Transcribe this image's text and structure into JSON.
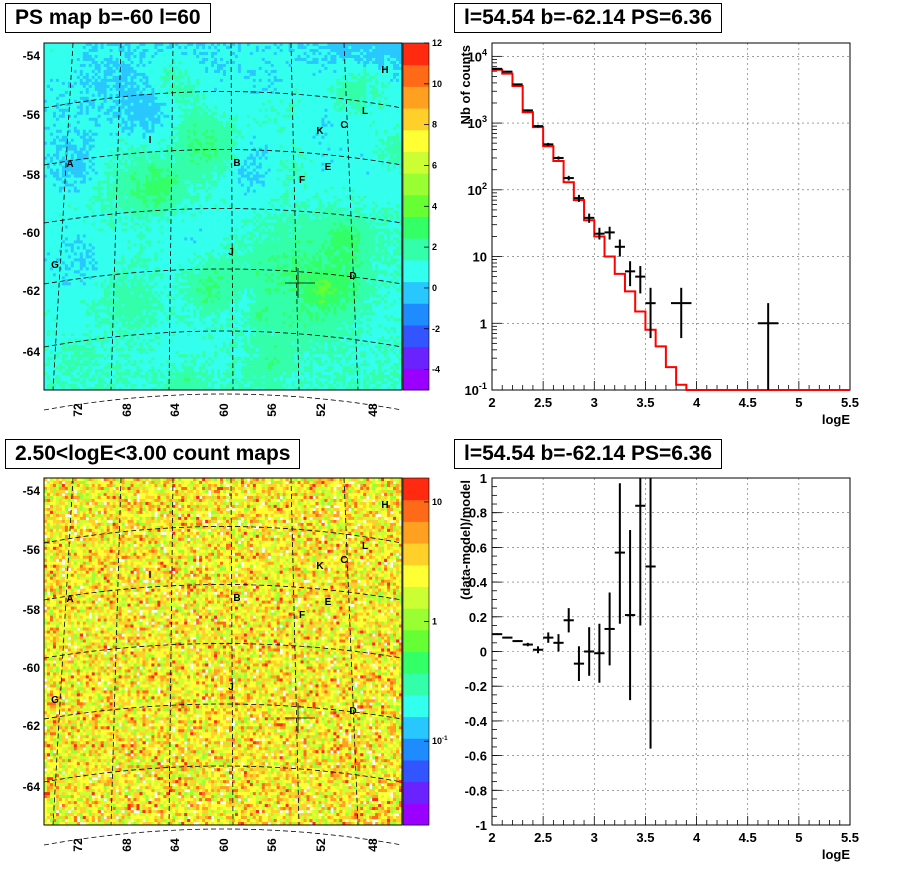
{
  "panels": {
    "map_top_title": "PS map b=-60 l=60",
    "spec_top_title": "l=54.54 b=-62.14 PS=6.36",
    "map_bottom_title": "2.50<logE<3.00 count maps",
    "spec_bottom_title": "l=54.54 b=-62.14 PS=6.36"
  },
  "colors": {
    "frame": "#000000",
    "model_line": "#ff0000",
    "data": "#000000",
    "grid": "#888888"
  },
  "map_common": {
    "y_ticks": [
      "-54",
      "-56",
      "-58",
      "-60",
      "-62",
      "-64"
    ],
    "x_ticks": [
      "72",
      "68",
      "64",
      "60",
      "56",
      "52",
      "48"
    ],
    "sources": [
      "A",
      "B",
      "C",
      "D",
      "E",
      "F",
      "G",
      "H",
      "I",
      "J",
      "K",
      "L"
    ]
  },
  "chart_data": [
    {
      "type": "heatmap",
      "title": "PS map b=-60 l=60",
      "colorbar_ticks": [
        "-4",
        "-2",
        "0",
        "2",
        "4",
        "6",
        "8",
        "10",
        "12"
      ],
      "colorbar_range": [
        -5,
        12
      ],
      "palette": [
        "#9900ff",
        "#6a22ff",
        "#3355ff",
        "#1e8cff",
        "#28c8ff",
        "#33ffee",
        "#33ffaa",
        "#33ff66",
        "#66ff33",
        "#99ff33",
        "#ccff33",
        "#ffff33",
        "#ffd02a",
        "#ffa020",
        "#ff6a18",
        "#ff2a10"
      ],
      "x_range_deg": [
        75,
        45
      ],
      "y_range_deg": [
        -65.3,
        -53.5
      ]
    },
    {
      "type": "line",
      "title": "l=54.54 b=-62.14 PS=6.36",
      "xlabel": "logE",
      "ylabel": "Nb of counts",
      "x_ticks": [
        "2",
        "2.5",
        "3",
        "3.5",
        "4",
        "4.5",
        "5",
        "5.5"
      ],
      "y_ticks": [
        "10^-1",
        "1",
        "10",
        "10^2",
        "10^3",
        "10^4"
      ],
      "xlim": [
        2,
        5.5
      ],
      "ylim_log10": [
        -1,
        4.2
      ],
      "grid": true,
      "series": [
        {
          "style": "step",
          "color": "#ff0000",
          "bin_width": 0.1,
          "bin_starts": [
            2.0,
            2.1,
            2.2,
            2.3,
            2.4,
            2.5,
            2.6,
            2.7,
            2.8,
            2.9,
            3.0,
            3.1,
            3.2,
            3.3,
            3.4,
            3.5,
            3.6,
            3.7,
            3.8,
            3.9,
            4.0,
            4.1,
            4.2,
            4.3,
            4.4,
            4.5,
            4.6,
            4.7,
            4.8,
            4.9,
            5.0,
            5.1,
            5.2,
            5.3,
            5.4
          ],
          "values": [
            6300,
            5500,
            3600,
            1450,
            870,
            450,
            270,
            130,
            70,
            35,
            20,
            10,
            5.5,
            3.0,
            1.5,
            0.8,
            0.45,
            0.22,
            0.12,
            0.1,
            0.1,
            0.1,
            0.1,
            0.1,
            0.1,
            0.1,
            0.1,
            0.1,
            0.1,
            0.1,
            0.1,
            0.1,
            0.1,
            0.1,
            0.1
          ]
        },
        {
          "style": "errorbar",
          "color": "#000000",
          "points": [
            {
              "x": 2.05,
              "y": 6500,
              "lo": 6400,
              "hi": 6600,
              "xw": 0.05
            },
            {
              "x": 2.15,
              "y": 5900,
              "lo": 5800,
              "hi": 6000,
              "xw": 0.05
            },
            {
              "x": 2.25,
              "y": 3800,
              "lo": 3700,
              "hi": 3900,
              "xw": 0.05
            },
            {
              "x": 2.35,
              "y": 1550,
              "lo": 1500,
              "hi": 1600,
              "xw": 0.05
            },
            {
              "x": 2.45,
              "y": 900,
              "lo": 860,
              "hi": 940,
              "xw": 0.05
            },
            {
              "x": 2.55,
              "y": 480,
              "lo": 455,
              "hi": 505,
              "xw": 0.05
            },
            {
              "x": 2.65,
              "y": 300,
              "lo": 283,
              "hi": 317,
              "xw": 0.05
            },
            {
              "x": 2.75,
              "y": 150,
              "lo": 138,
              "hi": 162,
              "xw": 0.05
            },
            {
              "x": 2.85,
              "y": 75,
              "lo": 66,
              "hi": 84,
              "xw": 0.05
            },
            {
              "x": 2.95,
              "y": 38,
              "lo": 32,
              "hi": 44,
              "xw": 0.05
            },
            {
              "x": 3.05,
              "y": 22,
              "lo": 18,
              "hi": 27,
              "xw": 0.05
            },
            {
              "x": 3.15,
              "y": 23,
              "lo": 18,
              "hi": 28,
              "xw": 0.05
            },
            {
              "x": 3.25,
              "y": 14,
              "lo": 10,
              "hi": 18,
              "xw": 0.05
            },
            {
              "x": 3.35,
              "y": 6,
              "lo": 3.6,
              "hi": 8.5,
              "xw": 0.05
            },
            {
              "x": 3.45,
              "y": 5,
              "lo": 2.8,
              "hi": 7.2,
              "xw": 0.05
            },
            {
              "x": 3.55,
              "y": 2,
              "lo": 0.6,
              "hi": 3.4,
              "xw": 0.05
            },
            {
              "x": 3.85,
              "y": 2,
              "lo": 0.6,
              "hi": 3.4,
              "xw": 0.1
            },
            {
              "x": 4.7,
              "y": 1,
              "lo": 0.1,
              "hi": 2,
              "xw": 0.1
            }
          ]
        }
      ]
    },
    {
      "type": "heatmap",
      "title": "2.50<logE<3.00 count maps",
      "colorbar_ticks": [
        "1",
        "10",
        "10^-1"
      ],
      "colorbar_range_log10": [
        -1.7,
        1.2
      ],
      "palette": [
        "#9900ff",
        "#6a22ff",
        "#3355ff",
        "#1e8cff",
        "#28c8ff",
        "#33ffee",
        "#33ffaa",
        "#33ff66",
        "#66ff33",
        "#99ff33",
        "#ccff33",
        "#ffff33",
        "#ffd02a",
        "#ffa020",
        "#ff6a18",
        "#ff2a10"
      ],
      "x_range_deg": [
        75,
        45
      ],
      "y_range_deg": [
        -65.3,
        -53.5
      ]
    },
    {
      "type": "scatter",
      "title": "l=54.54 b=-62.14 PS=6.36",
      "xlabel": "logE",
      "ylabel": "(data-model)/model",
      "x_ticks": [
        "2",
        "2.5",
        "3",
        "3.5",
        "4",
        "4.5",
        "5",
        "5.5"
      ],
      "y_ticks": [
        "-1",
        "-0.8",
        "-0.6",
        "-0.4",
        "-0.2",
        "0",
        "0.2",
        "0.4",
        "0.6",
        "0.8",
        "1"
      ],
      "xlim": [
        2,
        5.5
      ],
      "ylim": [
        -1,
        1
      ],
      "grid": true,
      "points": [
        {
          "x": 2.05,
          "y": 0.1,
          "lo": 0.095,
          "hi": 0.105
        },
        {
          "x": 2.15,
          "y": 0.08,
          "lo": 0.075,
          "hi": 0.085
        },
        {
          "x": 2.25,
          "y": 0.06,
          "lo": 0.055,
          "hi": 0.065
        },
        {
          "x": 2.35,
          "y": 0.04,
          "lo": 0.03,
          "hi": 0.05
        },
        {
          "x": 2.45,
          "y": 0.01,
          "lo": -0.01,
          "hi": 0.03
        },
        {
          "x": 2.55,
          "y": 0.08,
          "lo": 0.05,
          "hi": 0.11
        },
        {
          "x": 2.65,
          "y": 0.05,
          "lo": 0.0,
          "hi": 0.1
        },
        {
          "x": 2.75,
          "y": 0.18,
          "lo": 0.11,
          "hi": 0.25
        },
        {
          "x": 2.85,
          "y": -0.07,
          "lo": -0.17,
          "hi": 0.03
        },
        {
          "x": 2.95,
          "y": 0.0,
          "lo": -0.14,
          "hi": 0.14
        },
        {
          "x": 3.05,
          "y": -0.01,
          "lo": -0.18,
          "hi": 0.16
        },
        {
          "x": 3.15,
          "y": 0.13,
          "lo": -0.08,
          "hi": 0.34
        },
        {
          "x": 3.25,
          "y": 0.57,
          "lo": 0.16,
          "hi": 0.97
        },
        {
          "x": 3.35,
          "y": 0.21,
          "lo": -0.28,
          "hi": 0.7
        },
        {
          "x": 3.45,
          "y": 0.84,
          "lo": 0.15,
          "hi": 1.0
        },
        {
          "x": 3.55,
          "y": 0.49,
          "lo": -0.56,
          "hi": 1.0
        }
      ]
    }
  ]
}
